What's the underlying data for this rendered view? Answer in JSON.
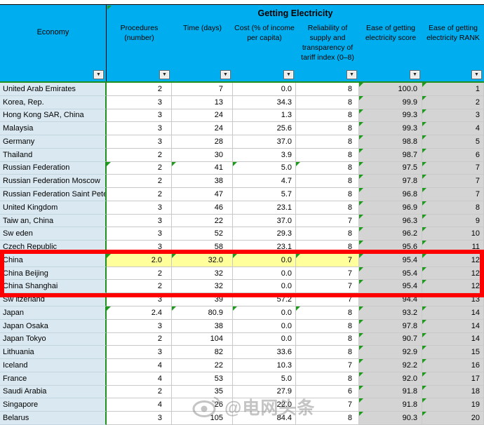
{
  "sheet": {
    "group_title": "Getting Electricity",
    "filter_icon": "▼",
    "columns": [
      {
        "label": "Economy"
      },
      {
        "label": "Procedures (number)"
      },
      {
        "label": "Time (days)"
      },
      {
        "label": "Cost (% of income per capita)"
      },
      {
        "label": "Reliability of supply and transparency of tariff index (0–8)"
      },
      {
        "label": "Ease of getting electricity score"
      },
      {
        "label": "Ease of getting electricity RANK"
      }
    ],
    "rows": [
      {
        "economy": "United Arab Emirates",
        "values": [
          "2",
          "7",
          "0.0",
          "8",
          "100.0",
          "1"
        ],
        "flags": [
          4,
          5
        ],
        "highlight": false
      },
      {
        "economy": "Korea, Rep.",
        "values": [
          "3",
          "13",
          "34.3",
          "8",
          "99.9",
          "2"
        ],
        "flags": [
          4,
          5
        ],
        "highlight": false
      },
      {
        "economy": "Hong Kong SAR, China",
        "values": [
          "3",
          "24",
          "1.3",
          "8",
          "99.3",
          "3"
        ],
        "flags": [
          4,
          5
        ],
        "highlight": false
      },
      {
        "economy": "Malaysia",
        "values": [
          "3",
          "24",
          "25.6",
          "8",
          "99.3",
          "4"
        ],
        "flags": [
          4,
          5
        ],
        "highlight": false
      },
      {
        "economy": "Germany",
        "values": [
          "3",
          "28",
          "37.0",
          "8",
          "98.8",
          "5"
        ],
        "flags": [
          4,
          5
        ],
        "highlight": false
      },
      {
        "economy": "Thailand",
        "values": [
          "2",
          "30",
          "3.9",
          "8",
          "98.7",
          "6"
        ],
        "flags": [
          4,
          5
        ],
        "highlight": false
      },
      {
        "economy": "Russian Federation",
        "values": [
          "2",
          "41",
          "5.0",
          "8",
          "97.5",
          "7"
        ],
        "flags": [
          0,
          1,
          2,
          3,
          4,
          5
        ],
        "highlight": false
      },
      {
        "economy": "Russian Federation Moscow",
        "values": [
          "2",
          "38",
          "4.7",
          "8",
          "97.8",
          "7"
        ],
        "flags": [
          4,
          5
        ],
        "highlight": false
      },
      {
        "economy": "Russian Federation Saint Peter",
        "values": [
          "2",
          "47",
          "5.7",
          "8",
          "96.8",
          "7"
        ],
        "flags": [
          4,
          5
        ],
        "highlight": false
      },
      {
        "economy": "United Kingdom",
        "values": [
          "3",
          "46",
          "23.1",
          "8",
          "96.9",
          "8"
        ],
        "flags": [
          4,
          5
        ],
        "highlight": false
      },
      {
        "economy": "Taiw an, China",
        "values": [
          "3",
          "22",
          "37.0",
          "7",
          "96.3",
          "9"
        ],
        "flags": [
          4,
          5
        ],
        "highlight": false
      },
      {
        "economy": "Sw eden",
        "values": [
          "3",
          "52",
          "29.3",
          "8",
          "96.2",
          "10"
        ],
        "flags": [
          4,
          5
        ],
        "highlight": false
      },
      {
        "economy": "Czech Republic",
        "values": [
          "3",
          "58",
          "23.1",
          "8",
          "95.6",
          "11"
        ],
        "flags": [
          4,
          5
        ],
        "highlight": false
      },
      {
        "economy": "China",
        "values": [
          "2.0",
          "32.0",
          "0.0",
          "7",
          "95.4",
          "12"
        ],
        "flags": [
          0,
          1,
          2,
          3,
          4,
          5
        ],
        "highlight": true
      },
      {
        "economy": "China Beijing",
        "values": [
          "2",
          "32",
          "0.0",
          "7",
          "95.4",
          "12"
        ],
        "flags": [
          4,
          5
        ],
        "highlight": false
      },
      {
        "economy": "China Shanghai",
        "values": [
          "2",
          "32",
          "0.0",
          "7",
          "95.4",
          "12"
        ],
        "flags": [
          4,
          5
        ],
        "highlight": false
      },
      {
        "economy": "Sw itzerland",
        "values": [
          "3",
          "39",
          "57.2",
          "7",
          "94.4",
          "13"
        ],
        "flags": [
          4,
          5
        ],
        "highlight": false
      },
      {
        "economy": "Japan",
        "values": [
          "2.4",
          "80.9",
          "0.0",
          "8",
          "93.2",
          "14"
        ],
        "flags": [
          0,
          1,
          2,
          3,
          4,
          5
        ],
        "highlight": false
      },
      {
        "economy": "Japan Osaka",
        "values": [
          "3",
          "38",
          "0.0",
          "8",
          "97.8",
          "14"
        ],
        "flags": [
          4,
          5
        ],
        "highlight": false
      },
      {
        "economy": "Japan Tokyo",
        "values": [
          "2",
          "104",
          "0.0",
          "8",
          "90.7",
          "14"
        ],
        "flags": [
          4,
          5
        ],
        "highlight": false
      },
      {
        "economy": "Lithuania",
        "values": [
          "3",
          "82",
          "33.6",
          "8",
          "92.9",
          "15"
        ],
        "flags": [
          4,
          5
        ],
        "highlight": false
      },
      {
        "economy": "Iceland",
        "values": [
          "4",
          "22",
          "10.3",
          "7",
          "92.2",
          "16"
        ],
        "flags": [
          4,
          5
        ],
        "highlight": false
      },
      {
        "economy": "France",
        "values": [
          "4",
          "53",
          "5.0",
          "8",
          "92.0",
          "17"
        ],
        "flags": [
          4,
          5
        ],
        "highlight": false
      },
      {
        "economy": "Saudi Arabia",
        "values": [
          "2",
          "35",
          "27.9",
          "6",
          "91.8",
          "18"
        ],
        "flags": [
          4,
          5
        ],
        "highlight": false
      },
      {
        "economy": "Singapore",
        "values": [
          "4",
          "26",
          "22.0",
          "7",
          "91.8",
          "19"
        ],
        "flags": [
          4,
          5
        ],
        "highlight": false
      },
      {
        "economy": "Belarus",
        "values": [
          "3",
          "105",
          "84.4",
          "8",
          "90.3",
          "20"
        ],
        "flags": [
          4,
          5
        ],
        "highlight": false
      }
    ]
  },
  "watermark": {
    "text": "@电网头条"
  },
  "colors": {
    "header_blue": "#00AEEF",
    "economy_fill": "#DAE9F1",
    "score_fill": "#D4D4D4",
    "highlight_yellow": "#FFFF9C",
    "flag_green": "#1F9A1F",
    "red_box": "#FE0000"
  }
}
